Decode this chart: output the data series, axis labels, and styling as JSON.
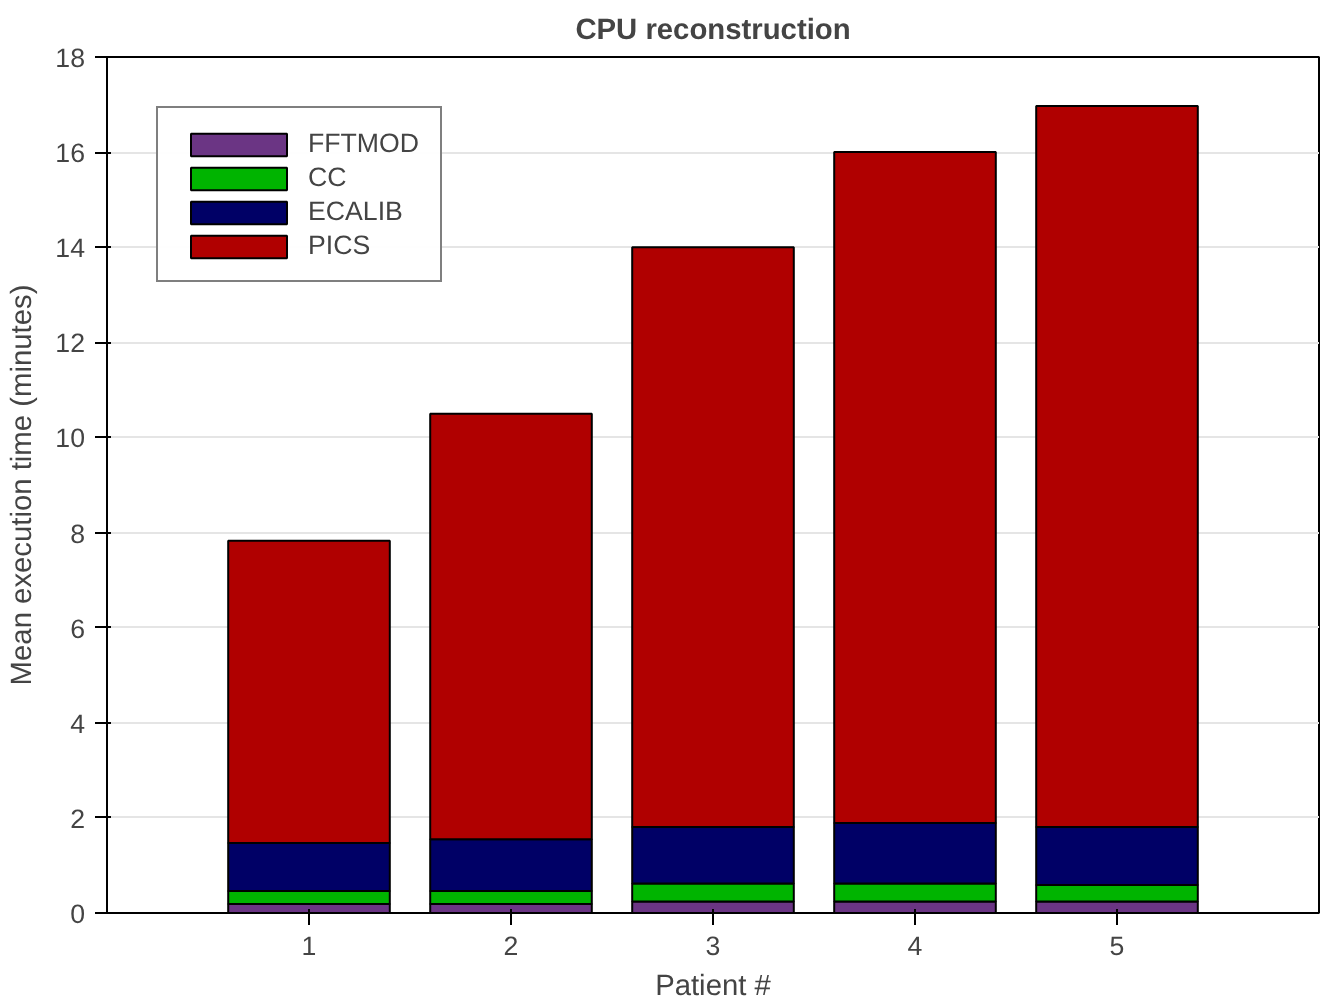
{
  "chart_data": {
    "type": "bar",
    "title": "CPU reconstruction",
    "xlabel": "Patient #",
    "ylabel": "Mean execution time (minutes)",
    "x": [
      1,
      2,
      3,
      4,
      5
    ],
    "xlim": [
      0,
      6
    ],
    "xticks": [
      1,
      2,
      3,
      4,
      5
    ],
    "ylim": [
      0,
      18
    ],
    "yticks": [
      0,
      2,
      4,
      6,
      8,
      10,
      12,
      14,
      16,
      18
    ],
    "stacked": true,
    "grid": "y",
    "legend": "top left",
    "series": [
      {
        "name": "FFTMOD",
        "color": "#6b3584",
        "values": [
          0.19,
          0.19,
          0.24,
          0.24,
          0.24
        ]
      },
      {
        "name": "CC",
        "color": "#00b400",
        "values": [
          0.27,
          0.27,
          0.38,
          0.38,
          0.35
        ]
      },
      {
        "name": "ECALIB",
        "color": "#000066",
        "values": [
          1.01,
          1.09,
          1.19,
          1.27,
          1.22
        ]
      },
      {
        "name": "PICS",
        "color": "#b00000",
        "values": [
          6.36,
          8.95,
          12.19,
          14.11,
          15.16
        ]
      }
    ]
  }
}
